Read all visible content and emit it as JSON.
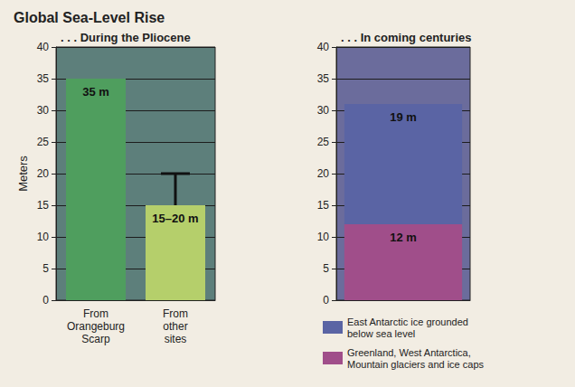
{
  "title": "Global Sea-Level Rise",
  "chart_data": [
    {
      "type": "bar",
      "title": ". . . During the Pliocene",
      "ylabel": "Meters",
      "categories": [
        "From Orangeburg Scarp",
        "From other sites"
      ],
      "values": [
        35,
        15
      ],
      "value_labels": [
        "35 m",
        "15–20 m"
      ],
      "error_bars": [
        null,
        {
          "low": 15,
          "high": 20
        }
      ],
      "colors": [
        "#4f9e5e",
        "#b5cf6b"
      ],
      "data_labels": true,
      "ylim": [
        0,
        40
      ],
      "yticks": [
        0,
        5,
        10,
        15,
        20,
        25,
        30,
        35,
        40
      ],
      "grid": true
    },
    {
      "type": "bar",
      "title": ". . . In coming centuries",
      "stacked": true,
      "categories": [
        null
      ],
      "series": [
        {
          "name": "East Antarctic ice grounded below sea level",
          "color": "#5a64a4",
          "values": [
            19
          ],
          "value_labels": [
            "19 m"
          ]
        },
        {
          "name": "Greenland, West Antarctica, Mountain glaciers and ice caps",
          "color": "#a04e8a",
          "values": [
            12
          ],
          "value_labels": [
            "12 m"
          ]
        }
      ],
      "data_labels": true,
      "tick_labels": "y",
      "legend": "bottom",
      "ylim": [
        0,
        40
      ],
      "yticks": [
        0,
        5,
        10,
        15,
        20,
        25,
        30,
        35,
        40
      ],
      "grid": true
    }
  ]
}
